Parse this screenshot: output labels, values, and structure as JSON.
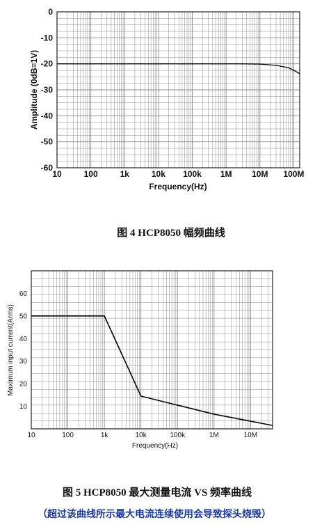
{
  "chart_data": [
    {
      "type": "line",
      "xlabel": "Frequency(Hz)",
      "ylabel": "Amplitude (0dB=1V)",
      "x_scale": "log",
      "xlim": [
        10,
        150000000
      ],
      "ylim": [
        -60,
        0
      ],
      "grid": true,
      "xticks": [
        {
          "value": 10,
          "label": "10"
        },
        {
          "value": 100,
          "label": "100"
        },
        {
          "value": 1000,
          "label": "1k"
        },
        {
          "value": 10000,
          "label": "10k"
        },
        {
          "value": 100000,
          "label": "100k"
        },
        {
          "value": 1000000,
          "label": "1M"
        },
        {
          "value": 10000000,
          "label": "10M"
        },
        {
          "value": 100000000,
          "label": "100M"
        }
      ],
      "yticks": [
        {
          "value": 0,
          "label": "0"
        },
        {
          "value": -10,
          "label": "-10"
        },
        {
          "value": -20,
          "label": "-20"
        },
        {
          "value": -30,
          "label": "-30"
        },
        {
          "value": -40,
          "label": "-40"
        },
        {
          "value": -50,
          "label": "-50"
        },
        {
          "value": -60,
          "label": "-60"
        }
      ],
      "series": [
        {
          "x": [
            10,
            1000000,
            3000000,
            10000000,
            30000000,
            70000000,
            100000000,
            150000000
          ],
          "y": [
            -20,
            -20,
            -20,
            -20.1,
            -20.6,
            -21.5,
            -22.5,
            -23.8
          ]
        }
      ]
    },
    {
      "type": "line",
      "xlabel": "Frequency(Hz)",
      "ylabel": "Maximum input current(Arms)",
      "x_scale": "log",
      "xlim": [
        10,
        40000000
      ],
      "ylim": [
        0,
        70
      ],
      "grid": true,
      "xticks": [
        {
          "value": 10,
          "label": "10"
        },
        {
          "value": 100,
          "label": "100"
        },
        {
          "value": 1000,
          "label": "1k"
        },
        {
          "value": 10000,
          "label": "10k"
        },
        {
          "value": 100000,
          "label": "100k"
        },
        {
          "value": 1000000,
          "label": "1M"
        },
        {
          "value": 10000000,
          "label": "10M"
        }
      ],
      "yticks": [
        {
          "value": 10,
          "label": "10"
        },
        {
          "value": 20,
          "label": "20"
        },
        {
          "value": 30,
          "label": "30"
        },
        {
          "value": 40,
          "label": "40"
        },
        {
          "value": 50,
          "label": "50"
        },
        {
          "value": 60,
          "label": "60"
        }
      ],
      "series": [
        {
          "x": [
            10,
            1000,
            10000,
            100000,
            1000000,
            40000000
          ],
          "y": [
            50,
            50,
            14.5,
            10.5,
            6.5,
            1.5
          ]
        }
      ]
    }
  ],
  "captions": {
    "fig4": "图 4 HCP8050 幅频曲线",
    "fig5": "图 5 HCP8050 最大测量电流 VS 频率曲线",
    "fig5_note": "（超过该曲线所示最大电流连续使用会导致探头烧毁）"
  },
  "colors": {
    "grid": "#888888",
    "frame": "#222222",
    "line": "#000000",
    "note": "#1b3a9a"
  }
}
